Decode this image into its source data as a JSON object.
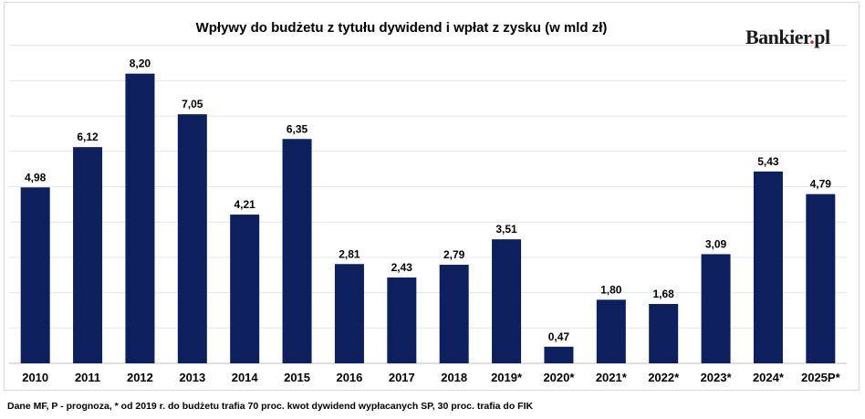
{
  "chart_data": {
    "type": "bar",
    "title": "Wpływy do budżetu z tytułu dywidend i wpłat z zysku (w mld zł)",
    "categories": [
      "2010",
      "2011",
      "2012",
      "2013",
      "2014",
      "2015",
      "2016",
      "2017",
      "2018",
      "2019*",
      "2020*",
      "2021*",
      "2022*",
      "2023*",
      "2024*",
      "2025P*"
    ],
    "values": [
      4.98,
      6.12,
      8.2,
      7.05,
      4.21,
      6.35,
      2.81,
      2.43,
      2.79,
      3.51,
      0.47,
      1.8,
      1.68,
      3.09,
      5.43,
      4.79
    ],
    "value_labels": [
      "4,98",
      "6,12",
      "8,20",
      "7,05",
      "4,21",
      "6,35",
      "2,81",
      "2,43",
      "2,79",
      "3,51",
      "0,47",
      "1,80",
      "1,68",
      "3,09",
      "5,43",
      "4,79"
    ],
    "ylim": [
      0,
      9
    ],
    "grid": true,
    "bar_color": "#0d1f5c",
    "grid_color": "#e6e6e6"
  },
  "logo": {
    "name": "Bankier",
    "dot": ".",
    "suffix": "pl"
  },
  "footnote": "Dane MF, P - prognoza, * od 2019 r. do budżetu trafia 70 proc. kwot dywidend wypłacanych SP, 30 proc. trafia do FIK"
}
